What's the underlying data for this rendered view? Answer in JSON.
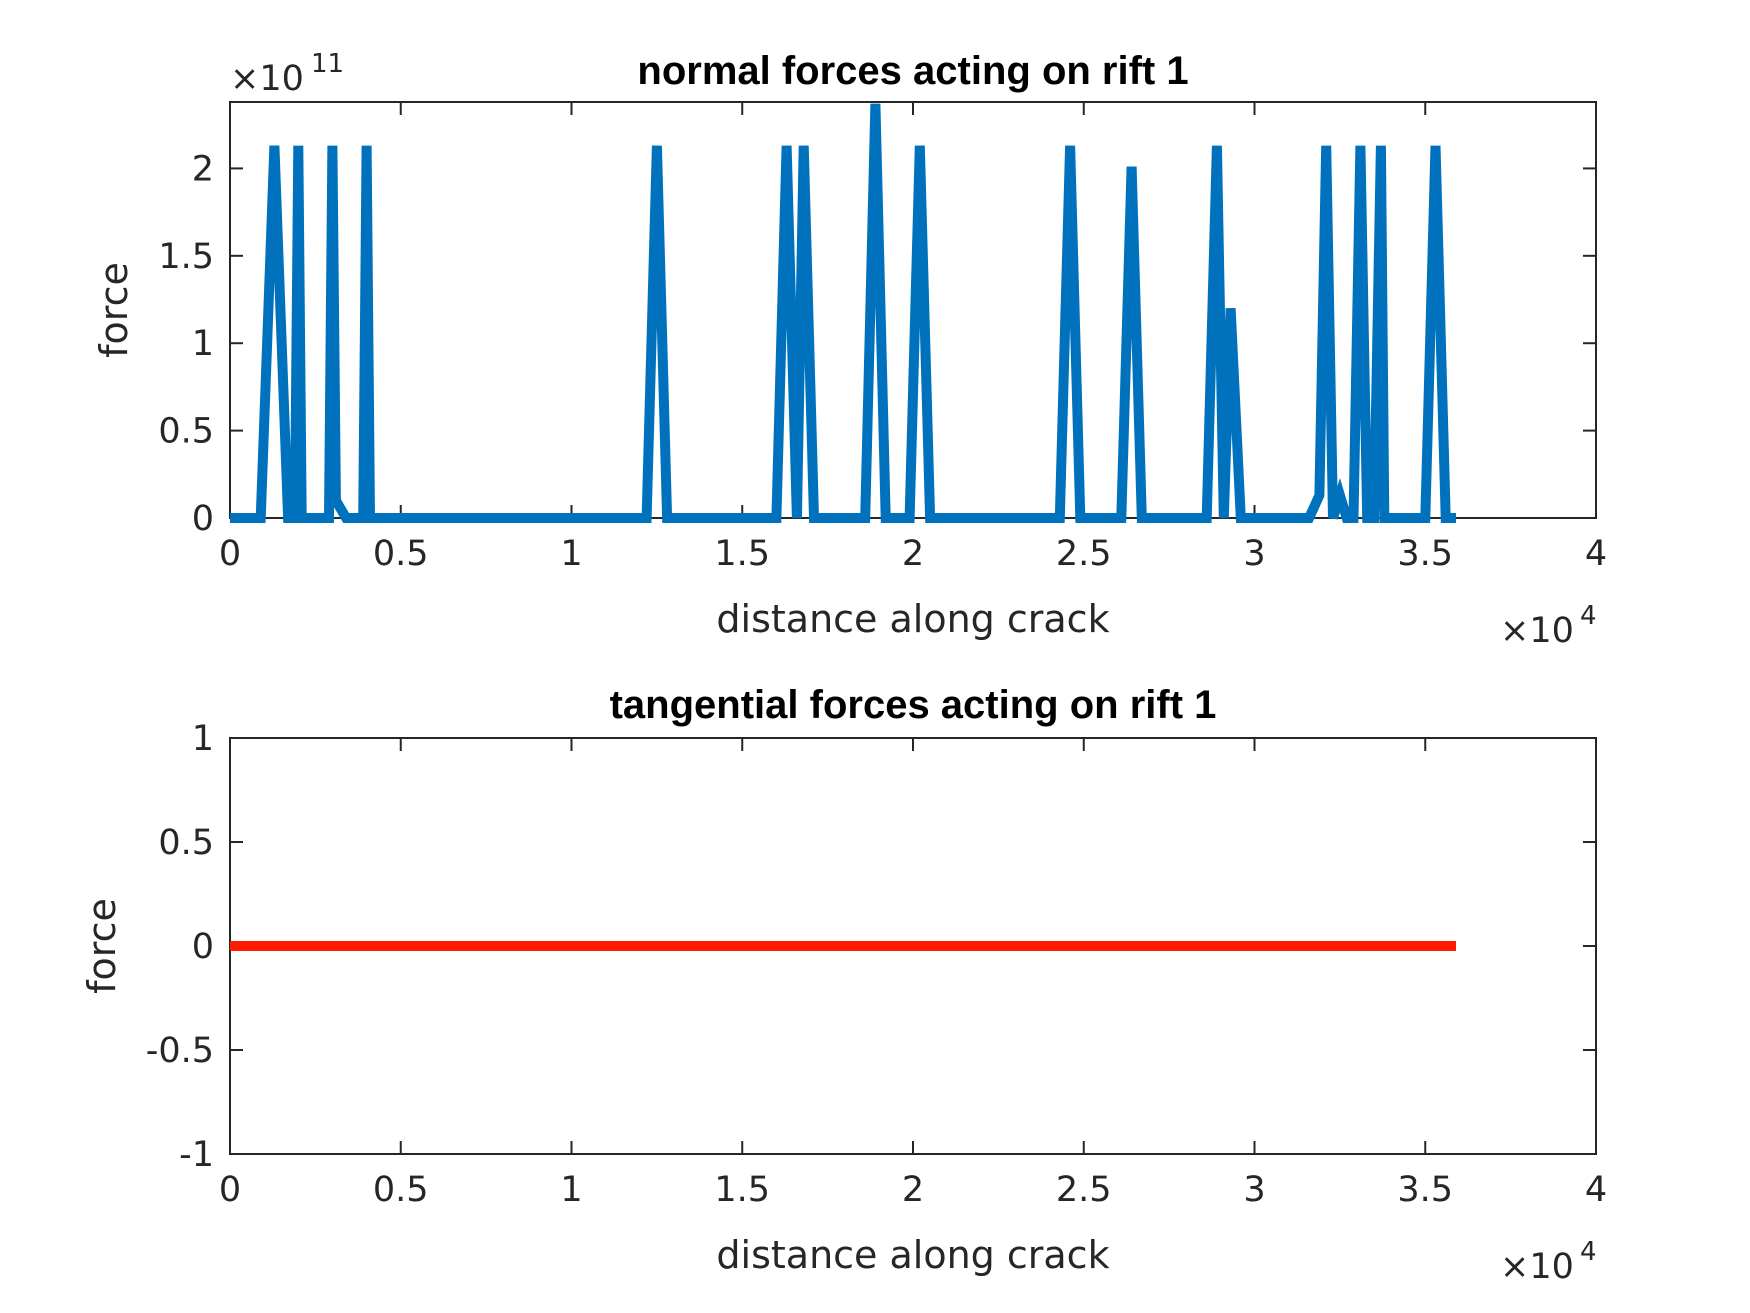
{
  "chart_data": [
    {
      "type": "line",
      "title": "normal forces acting on rift 1",
      "xlabel": "distance along crack",
      "ylabel": "force",
      "xlim": [
        0,
        40000
      ],
      "ylim": [
        0,
        238000000000.0
      ],
      "x_exponent_label": "×10",
      "x_exponent": "4",
      "y_exponent_label": "×10",
      "y_exponent": "11",
      "x_scale": 10000,
      "y_scale": 100000000000,
      "xticks": [
        0,
        0.5,
        1,
        1.5,
        2,
        2.5,
        3,
        3.5,
        4
      ],
      "yticks": [
        0,
        0.5,
        1,
        1.5,
        2
      ],
      "grid": false,
      "series": [
        {
          "color": "#0072BD",
          "x": [
            0,
            900,
            1300,
            1700,
            1900,
            2000,
            2100,
            2500,
            2900,
            3000,
            3100,
            3400,
            3700,
            3900,
            4000,
            4100,
            12200,
            12500,
            12800,
            16000,
            16300,
            16600,
            16800,
            17100,
            18600,
            18900,
            19200,
            19900,
            20200,
            20500,
            24300,
            24600,
            24900,
            26100,
            26400,
            26700,
            28600,
            28900,
            29100,
            29300,
            29600,
            31600,
            31900,
            32100,
            32300,
            32500,
            32700,
            32900,
            33100,
            33300,
            33500,
            33700,
            33800,
            34100,
            34300,
            35000,
            35300,
            35600,
            35900
          ],
          "y": [
            0,
            0,
            213000000000.0,
            0,
            0,
            213000000000.0,
            0,
            0,
            0,
            213000000000.0,
            10000000000.0,
            0,
            0,
            0,
            213000000000.0,
            0,
            0,
            213000000000.0,
            0,
            0,
            213000000000.0,
            0,
            213000000000.0,
            0,
            0,
            237000000000.0,
            0,
            0,
            213000000000.0,
            0,
            0,
            213000000000.0,
            0,
            0,
            201000000000.0,
            0,
            0,
            213000000000.0,
            0,
            120000000000.0,
            0,
            0,
            13000000000.0,
            213000000000.0,
            0,
            13000000000.0,
            0,
            0,
            213000000000.0,
            0,
            0,
            213000000000.0,
            0,
            0,
            0,
            0,
            213000000000.0,
            0,
            0
          ]
        }
      ]
    },
    {
      "type": "line",
      "title": "tangential forces acting on rift 1",
      "xlabel": "distance along crack",
      "ylabel": "force",
      "xlim": [
        0,
        40000
      ],
      "ylim": [
        -1,
        1
      ],
      "x_exponent_label": "×10",
      "x_exponent": "4",
      "x_scale": 10000,
      "xticks": [
        0,
        0.5,
        1,
        1.5,
        2,
        2.5,
        3,
        3.5,
        4
      ],
      "yticks": [
        -1,
        -0.5,
        0,
        0.5,
        1
      ],
      "grid": false,
      "series": [
        {
          "color": "#FF1A00",
          "x": [
            0,
            35900
          ],
          "y": [
            0,
            0
          ]
        }
      ]
    }
  ]
}
